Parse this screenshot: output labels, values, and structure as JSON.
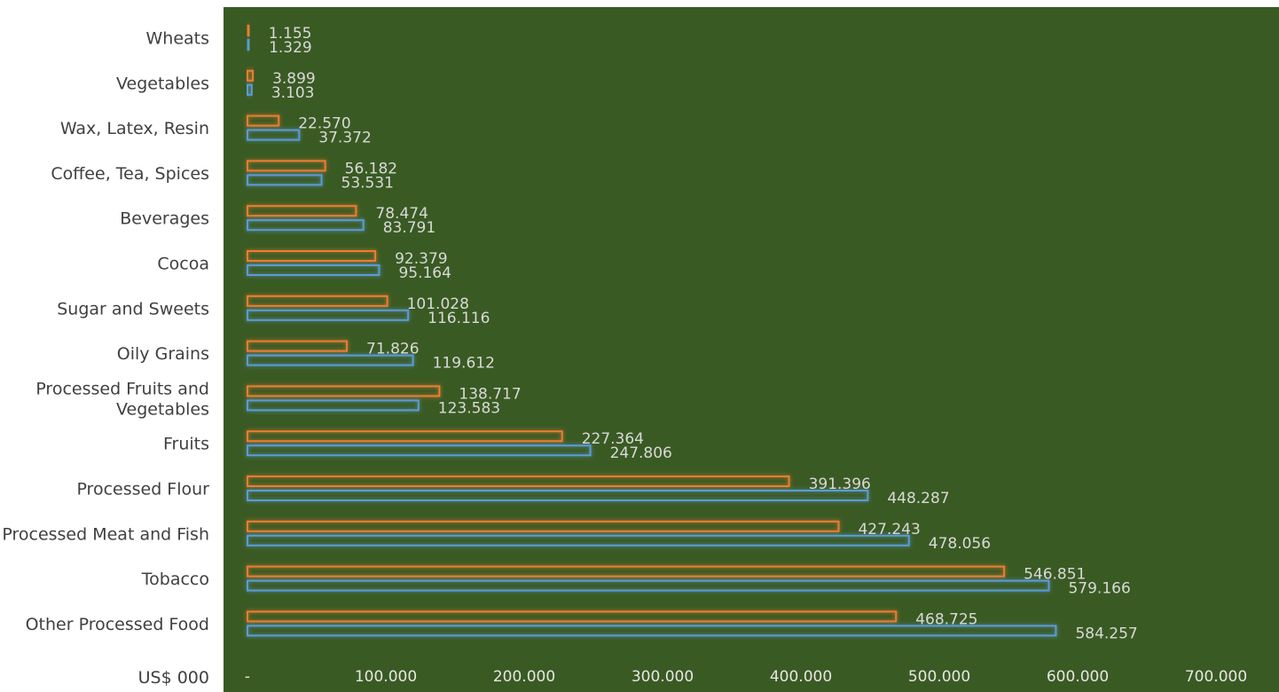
{
  "chart_data": {
    "type": "bar",
    "orientation": "horizontal",
    "categories": [
      "Wheats",
      "Vegetables",
      "Wax, Latex, Resin",
      "Coffee, Tea, Spices",
      "Beverages",
      "Cocoa",
      "Sugar and Sweets",
      "Oily Grains",
      "Processed Fruits and\nVegetables",
      "Fruits",
      "Processed Flour",
      "Processed Meat and Fish",
      "Tobacco",
      "Other Processed Food"
    ],
    "series": [
      {
        "color": "#ED7D31",
        "values": [
          1155,
          3899,
          22570,
          56182,
          78474,
          92379,
          101028,
          71826,
          138717,
          227364,
          391396,
          427243,
          546851,
          468725
        ],
        "labels": [
          "1.155",
          "3.899",
          "22.570",
          "56.182",
          "78.474",
          "92.379",
          "101.028",
          "71.826",
          "138.717",
          "227.364",
          "391.396",
          "427.243",
          "546.851",
          "468.725"
        ]
      },
      {
        "color": "#5B9BD5",
        "values": [
          1329,
          3103,
          37372,
          53531,
          83791,
          95164,
          116116,
          119612,
          123583,
          247806,
          448287,
          478056,
          579166,
          584257
        ],
        "labels": [
          "1.329",
          "3.103",
          "37.372",
          "53.531",
          "83.791",
          "95.164",
          "116.116",
          "119.612",
          "123.583",
          "247.806",
          "448.287",
          "478.056",
          "579.166",
          "584.257"
        ]
      }
    ],
    "xlim": [
      0,
      700000
    ],
    "xticks": [
      0,
      100000,
      200000,
      300000,
      400000,
      500000,
      600000,
      700000
    ],
    "xtick_labels": [
      "-",
      "100.000",
      "200.000",
      "300.000",
      "400.000",
      "500.000",
      "600.000",
      "700.000"
    ],
    "unit_label": "US$ 000",
    "plot_background": "#3A5A23",
    "grid": false,
    "legend": "none"
  }
}
